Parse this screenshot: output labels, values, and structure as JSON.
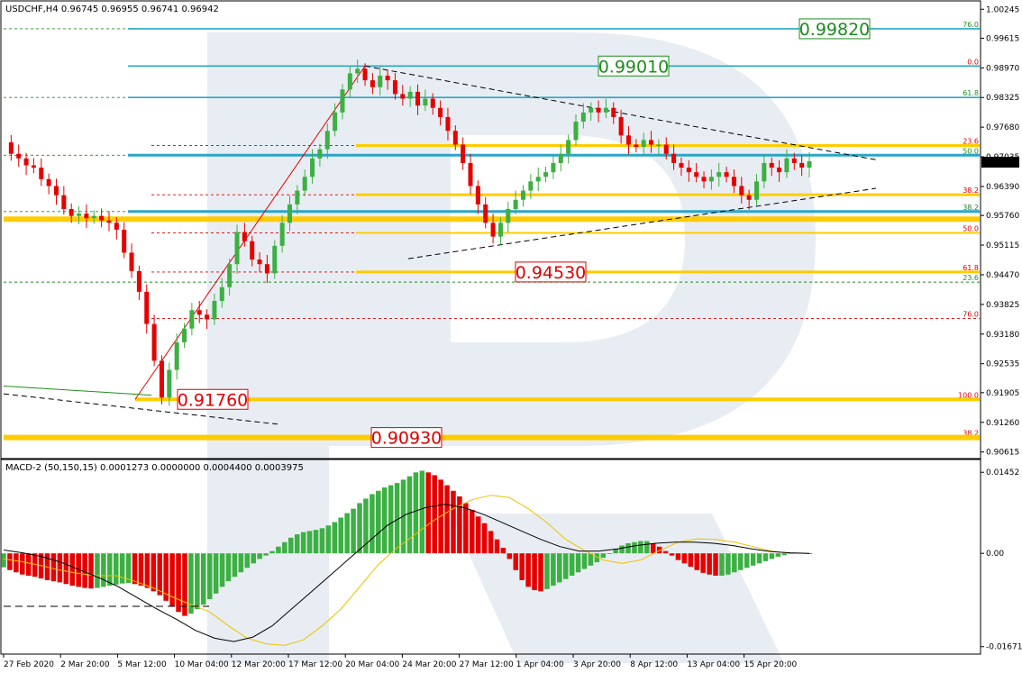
{
  "header": {
    "main": "USDCHF,H4  0.96745 0.96955 0.96741 0.96942",
    "macd": "MACD-2 (50,150,15) 0.0001273 0.0000000 0.0004400 0.0003975"
  },
  "current_price_label": "0.96942",
  "colors": {
    "up": "#3cb043",
    "down": "#e60000",
    "trend": "#000000",
    "fib_green": "#1e8c1e",
    "fib_red": "#dd0000",
    "level_blue": "#2aa6c8",
    "level_yellow": "#ffcc00",
    "signal": "#f0c000",
    "macd_line": "#000000"
  },
  "chart_data": [
    {
      "type": "candlestick",
      "symbol": "USDCHF",
      "timeframe": "H4",
      "title": "USDCHF,H4",
      "ylim": [
        0.9055,
        1.0025
      ],
      "y_ticks": [
        "1.00245",
        "0.99615",
        "0.98970",
        "0.98325",
        "0.97680",
        "0.97035",
        "0.96390",
        "0.95760",
        "0.95115",
        "0.94470",
        "0.93825",
        "0.93180",
        "0.92535",
        "0.91905",
        "0.91260",
        "0.90615"
      ],
      "x_ticks": [
        "27 Feb 2020",
        "2 Mar 20:00",
        "5 Mar 12:00",
        "10 Mar 04:00",
        "12 Mar 20:00",
        "17 Mar 12:00",
        "20 Mar 04:00",
        "24 Mar 20:00",
        "27 Mar 12:00",
        "1 Apr 04:00",
        "3 Apr 20:00",
        "8 Apr 12:00",
        "13 Apr 04:00",
        "15 Apr 20:00"
      ],
      "price_path": [
        0.9735,
        0.971,
        0.97,
        0.9685,
        0.968,
        0.9655,
        0.964,
        0.962,
        0.959,
        0.9575,
        0.958,
        0.957,
        0.9575,
        0.9565,
        0.956,
        0.9545,
        0.9495,
        0.9455,
        0.941,
        0.934,
        0.926,
        0.918,
        0.924,
        0.93,
        0.933,
        0.937,
        0.936,
        0.935,
        0.939,
        0.942,
        0.947,
        0.954,
        0.952,
        0.948,
        0.947,
        0.945,
        0.951,
        0.956,
        0.96,
        0.963,
        0.966,
        0.97,
        0.972,
        0.976,
        0.98,
        0.985,
        0.9885,
        0.9895,
        0.987,
        0.9855,
        0.988,
        0.987,
        0.984,
        0.983,
        0.9845,
        0.9815,
        0.983,
        0.981,
        0.979,
        0.976,
        0.973,
        0.969,
        0.964,
        0.96,
        0.956,
        0.953,
        0.956,
        0.959,
        0.961,
        0.963,
        0.965,
        0.966,
        0.967,
        0.969,
        0.971,
        0.974,
        0.978,
        0.98,
        0.981,
        0.98,
        0.981,
        0.979,
        0.975,
        0.973,
        0.9725,
        0.974,
        0.973,
        0.973,
        0.971,
        0.969,
        0.968,
        0.967,
        0.966,
        0.965,
        0.966,
        0.967,
        0.966,
        0.964,
        0.962,
        0.961,
        0.965,
        0.969,
        0.968,
        0.967,
        0.97,
        0.969,
        0.968,
        0.9694
      ],
      "price_labels": [
        {
          "text": "0.99820",
          "value": 0.9982,
          "color": "#1e8c1e",
          "anchor": "right"
        },
        {
          "text": "0.99010",
          "value": 0.9901,
          "color": "#1e8c1e",
          "anchor": "center"
        },
        {
          "text": "0.94530",
          "value": 0.9453,
          "color": "#dd0000",
          "anchor": "center"
        },
        {
          "text": "0.91760",
          "value": 0.9176,
          "color": "#dd0000",
          "anchor": "left"
        },
        {
          "text": "0.90930",
          "value": 0.9093,
          "color": "#dd0000",
          "anchor": "left"
        }
      ],
      "fib_levels": [
        {
          "label": "76.0",
          "value": 0.9982,
          "color": "#1e8c1e"
        },
        {
          "label": "61.8",
          "value": 0.98325,
          "color": "#1e8c1e"
        },
        {
          "label": "50.0",
          "value": 0.9707,
          "color": "#1e8c1e"
        },
        {
          "label": "38.2",
          "value": 0.95845,
          "color": "#1e8c1e"
        },
        {
          "label": "23.6",
          "value": 0.9431,
          "color": "#1e8c1e"
        },
        {
          "label": "0.0",
          "value": 0.9901,
          "color": "#dd0000"
        },
        {
          "label": "23.6",
          "value": 0.9728,
          "color": "#dd0000"
        },
        {
          "label": "38.2",
          "value": 0.9621,
          "color": "#dd0000"
        },
        {
          "label": "50.0",
          "value": 0.9538,
          "color": "#dd0000"
        },
        {
          "label": "61.8",
          "value": 0.9453,
          "color": "#dd0000"
        },
        {
          "label": "76.0",
          "value": 0.9352,
          "color": "#dd0000"
        },
        {
          "label": "100.0",
          "value": 0.9176,
          "color": "#dd0000"
        },
        {
          "label": "38.2",
          "value": 0.9093,
          "color": "#dd0000"
        }
      ]
    },
    {
      "type": "bar",
      "title": "MACD-2 (50,150,15)",
      "ylim": [
        -0.0174,
        0.0152
      ],
      "y_ticks": [
        "0.01452",
        "0.00",
        "-0.016712"
      ],
      "histogram": [
        -0.0025,
        -0.003,
        -0.0034,
        -0.0038,
        -0.004,
        -0.0042,
        -0.0045,
        -0.0048,
        -0.005,
        -0.0052,
        -0.0055,
        -0.0058,
        -0.006,
        -0.0062,
        -0.0063,
        -0.0062,
        -0.006,
        -0.0058,
        -0.0056,
        -0.0054,
        -0.0053,
        -0.0055,
        -0.0058,
        -0.0062,
        -0.0068,
        -0.0075,
        -0.0085,
        -0.0095,
        -0.0105,
        -0.0112,
        -0.0108,
        -0.01,
        -0.0092,
        -0.0082,
        -0.0072,
        -0.006,
        -0.005,
        -0.0042,
        -0.0034,
        -0.0026,
        -0.0018,
        -0.001,
        -0.0004,
        0.0004,
        0.0012,
        0.002,
        0.0028,
        0.0034,
        0.0038,
        0.004,
        0.0042,
        0.0045,
        0.005,
        0.0056,
        0.0064,
        0.0072,
        0.008,
        0.009,
        0.0098,
        0.0106,
        0.0112,
        0.0118,
        0.0122,
        0.0126,
        0.0132,
        0.0138,
        0.0145,
        0.0148,
        0.0145,
        0.014,
        0.0132,
        0.0122,
        0.0112,
        0.0102,
        0.009,
        0.0078,
        0.0066,
        0.0054,
        0.004,
        0.0025,
        0.001,
        -0.001,
        -0.003,
        -0.0048,
        -0.006,
        -0.0066,
        -0.0068,
        -0.0064,
        -0.0058,
        -0.0052,
        -0.0046,
        -0.004,
        -0.0034,
        -0.0028,
        -0.0022,
        -0.0016,
        -0.0008,
        0.0,
        0.0008,
        0.0014,
        0.0018,
        0.002,
        0.0022,
        0.0022,
        0.0018,
        0.0012,
        0.0004,
        -0.0004,
        -0.0012,
        -0.0018,
        -0.0024,
        -0.003,
        -0.0035,
        -0.0038,
        -0.004,
        -0.004,
        -0.0038,
        -0.0034,
        -0.003,
        -0.0026,
        -0.0022,
        -0.0018,
        -0.0014,
        -0.001,
        -0.0006,
        -0.0003,
        -0.0001,
        0.0001,
        0.0001,
        0.0
      ],
      "signal_line": [
        -0.001,
        -0.0015,
        -0.0022,
        -0.003,
        -0.0036,
        -0.004,
        -0.004,
        -0.005,
        -0.0062,
        -0.0078,
        -0.0092,
        -0.0105,
        -0.013,
        -0.0152,
        -0.0162,
        -0.0165,
        -0.0155,
        -0.013,
        -0.01,
        -0.006,
        -0.002,
        0.001,
        0.0035,
        0.006,
        0.008,
        0.0096,
        0.0104,
        0.01,
        0.008,
        0.0055,
        0.0025,
        0.0005,
        -0.0012,
        -0.0018,
        -0.0012,
        0.0005,
        0.002,
        0.0026,
        0.0025,
        0.002,
        0.0012,
        0.0004,
        0.0,
        0.0
      ],
      "macd_line": [
        0.0006,
        0.0001,
        -0.0006,
        -0.0016,
        -0.003,
        -0.0044,
        -0.006,
        -0.008,
        -0.01,
        -0.0118,
        -0.0138,
        -0.0152,
        -0.0158,
        -0.015,
        -0.013,
        -0.01,
        -0.007,
        -0.004,
        -0.001,
        0.002,
        0.005,
        0.007,
        0.0082,
        0.0088,
        0.0082,
        0.007,
        0.0055,
        0.004,
        0.0025,
        0.0012,
        0.0004,
        0.0004,
        0.0008,
        0.0014,
        0.0018,
        0.002,
        0.002,
        0.0018,
        0.0014,
        0.0008,
        0.0003,
        0.0001,
        0.0
      ]
    }
  ]
}
